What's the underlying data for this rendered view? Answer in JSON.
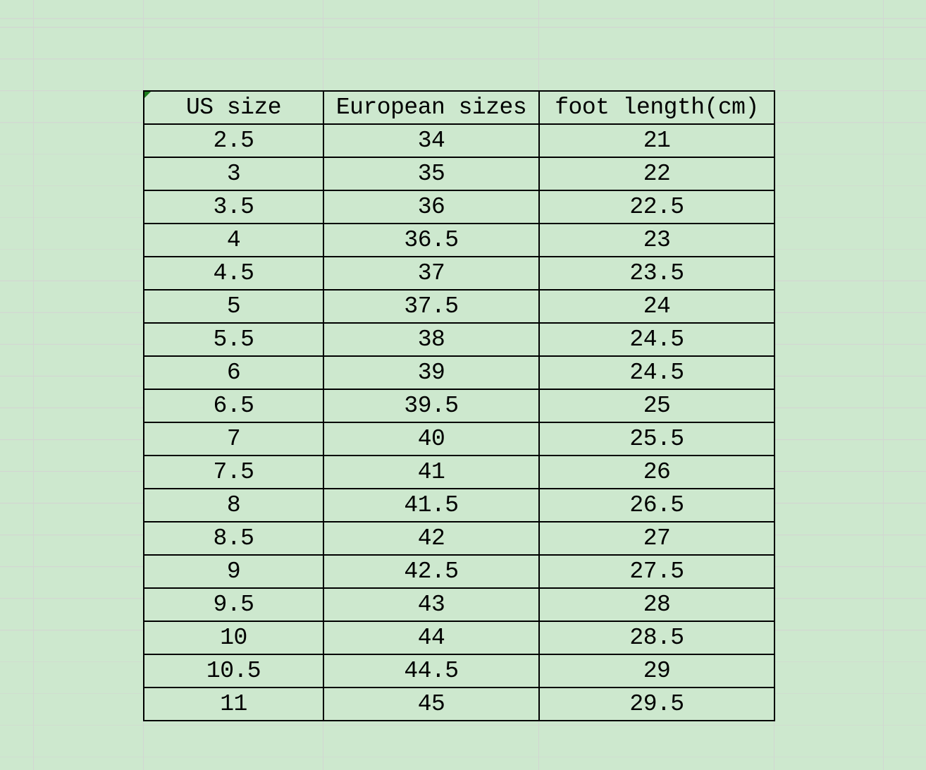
{
  "colors": {
    "background": "#cde8ce",
    "gridline": "#d2d6d2",
    "table_border": "#000000",
    "text": "#000000",
    "error_indicator": "#1c7c1c"
  },
  "icons": {
    "cell_error_indicator": "small dark-green triangle in top-left corner of first header cell"
  },
  "table": {
    "columns": [
      "US size",
      "European sizes",
      "foot length(cm)"
    ],
    "rows": [
      [
        "2.5",
        "34",
        "21"
      ],
      [
        "3",
        "35",
        "22"
      ],
      [
        "3.5",
        "36",
        "22.5"
      ],
      [
        "4",
        "36.5",
        "23"
      ],
      [
        "4.5",
        "37",
        "23.5"
      ],
      [
        "5",
        "37.5",
        "24"
      ],
      [
        "5.5",
        "38",
        "24.5"
      ],
      [
        "6",
        "39",
        "24.5"
      ],
      [
        "6.5",
        "39.5",
        "25"
      ],
      [
        "7",
        "40",
        "25.5"
      ],
      [
        "7.5",
        "41",
        "26"
      ],
      [
        "8",
        "41.5",
        "26.5"
      ],
      [
        "8.5",
        "42",
        "27"
      ],
      [
        "9",
        "42.5",
        "27.5"
      ],
      [
        "9.5",
        "43",
        "28"
      ],
      [
        "10",
        "44",
        "28.5"
      ],
      [
        "10.5",
        "44.5",
        "29"
      ],
      [
        "11",
        "45",
        "29.5"
      ]
    ]
  }
}
